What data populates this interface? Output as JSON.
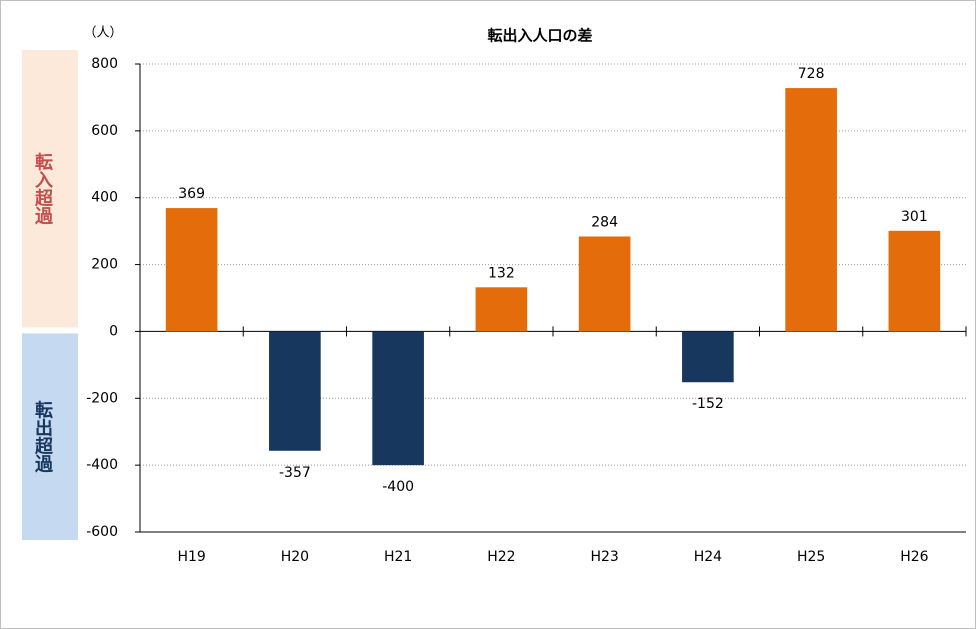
{
  "chart_data": {
    "type": "bar",
    "title": "転出入人口の差",
    "y_unit_label": "（人）",
    "annotations": [
      "転入超過",
      "転出超過"
    ],
    "categories": [
      "H19",
      "H20",
      "H21",
      "H22",
      "H23",
      "H24",
      "H25",
      "H26"
    ],
    "values": [
      369,
      -357,
      -400,
      132,
      284,
      -152,
      728,
      301
    ],
    "positive_color": "#e46c0a",
    "negative_color": "#17375e",
    "annotation_colors": [
      "#c0504d",
      "#17375e"
    ],
    "annotation_backgrounds": [
      "#fde9d9",
      "#c5d9f1"
    ],
    "ylim": [
      -600,
      800
    ],
    "yticks": [
      -600,
      -400,
      -200,
      0,
      200,
      400,
      600,
      800
    ],
    "grid": true
  }
}
